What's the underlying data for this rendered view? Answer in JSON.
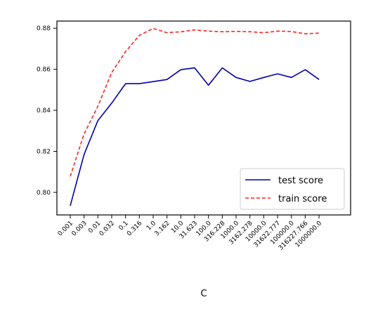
{
  "chart_data": {
    "type": "line",
    "title": "",
    "xlabel": "C",
    "ylabel": "",
    "categories": [
      "0.001",
      "0.003",
      "0.01",
      "0.032",
      "0.1",
      "0.316",
      "1.0",
      "3.162",
      "10.0",
      "31.623",
      "100.0",
      "316.228",
      "1000.0",
      "3162.278",
      "10000.0",
      "31622.777",
      "100000.0",
      "316227.766",
      "1000000.0"
    ],
    "yticks": [
      "0.80",
      "0.82",
      "0.84",
      "0.86",
      "0.88"
    ],
    "ylim": [
      0.789,
      0.8835
    ],
    "grid": false,
    "legend_position": "lower-right",
    "series": [
      {
        "name": "test score",
        "color": "#0000aa",
        "dash": "solid",
        "values": [
          0.7935,
          0.8185,
          0.835,
          0.8435,
          0.853,
          0.853,
          0.854,
          0.855,
          0.8598,
          0.8607,
          0.8522,
          0.8607,
          0.856,
          0.8541,
          0.856,
          0.8578,
          0.856,
          0.8598,
          0.855
        ]
      },
      {
        "name": "train score",
        "color": "#ff2222",
        "dash": "dashed",
        "values": [
          0.8078,
          0.8285,
          0.842,
          0.8584,
          0.8686,
          0.8765,
          0.8799,
          0.8778,
          0.8783,
          0.8792,
          0.8786,
          0.8783,
          0.8785,
          0.8783,
          0.8778,
          0.8786,
          0.8784,
          0.8773,
          0.8776
        ]
      }
    ]
  }
}
